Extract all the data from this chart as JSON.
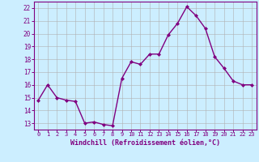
{
  "hours": [
    0,
    1,
    2,
    3,
    4,
    5,
    6,
    7,
    8,
    9,
    10,
    11,
    12,
    13,
    14,
    15,
    16,
    17,
    18,
    19,
    20,
    21,
    22,
    23
  ],
  "values": [
    14.8,
    16.0,
    15.0,
    14.8,
    14.7,
    13.0,
    13.1,
    12.9,
    12.8,
    16.5,
    17.8,
    17.6,
    18.4,
    18.4,
    19.9,
    20.8,
    22.1,
    21.4,
    20.4,
    18.2,
    17.3,
    16.3,
    16.0,
    16.0
  ],
  "line_color": "#800080",
  "marker": "D",
  "marker_size": 2,
  "line_width": 1.0,
  "bg_color": "#cceeff",
  "grid_color": "#b0b0b0",
  "xlabel": "Windchill (Refroidissement éolien,°C)",
  "xlabel_color": "#800080",
  "tick_color": "#800080",
  "ylim": [
    12.5,
    22.5
  ],
  "yticks": [
    13,
    14,
    15,
    16,
    17,
    18,
    19,
    20,
    21,
    22
  ],
  "xlim": [
    -0.5,
    23.5
  ],
  "xtick_fontsize": 5.0,
  "ytick_fontsize": 5.5,
  "xlabel_fontsize": 6.0
}
